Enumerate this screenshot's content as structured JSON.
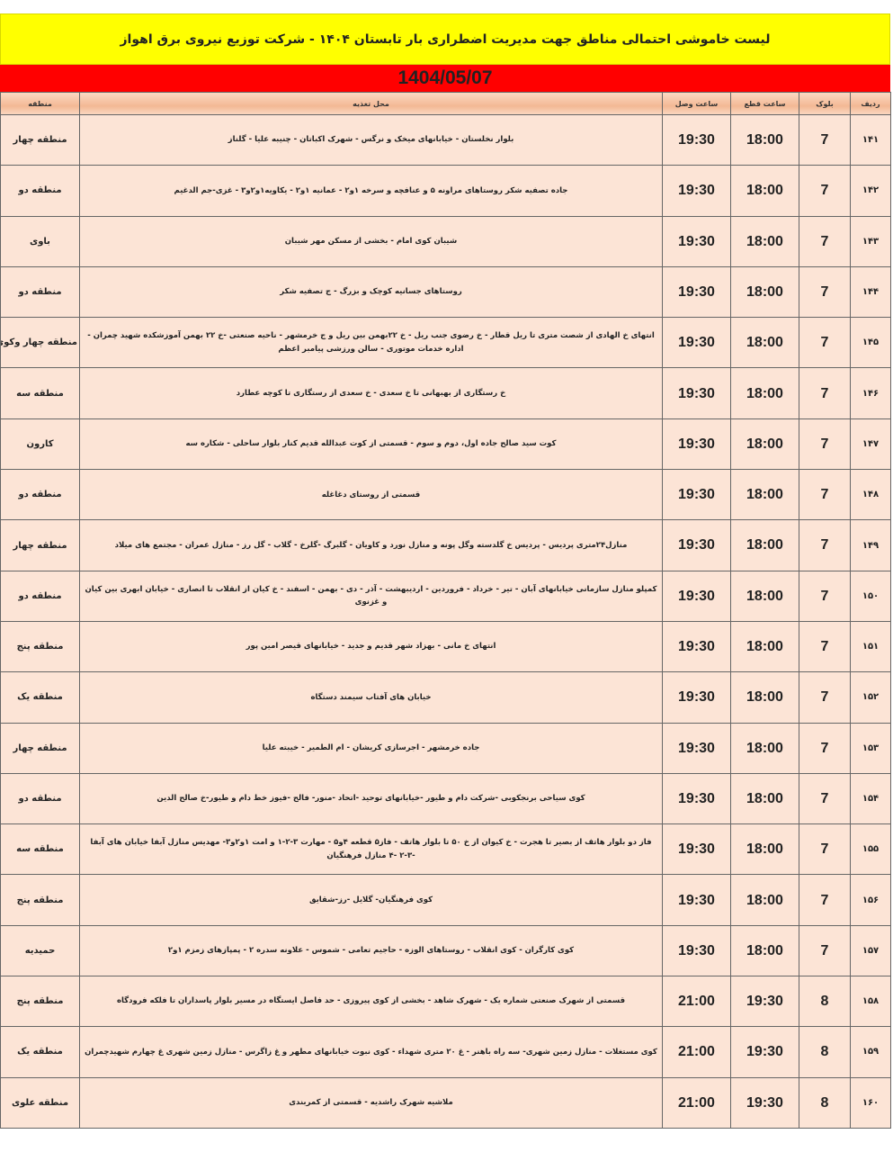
{
  "title": "لیست خاموشی احتمالی مناطق جهت مدیریت اضطراری بار تابستان ۱۴۰۴ - شرکت توزیع نیروی برق اهواز",
  "date": "1404/05/07",
  "colors": {
    "title_bg": "#ffff00",
    "date_bg": "#ff0000",
    "row_bg": "#fce4d6"
  },
  "headers": {
    "row": "ردیف",
    "block": "بلوک",
    "cut": "ساعت قطع",
    "connect": "ساعت وصل",
    "address": "محل تغذیه",
    "region": "منطقه"
  },
  "rows": [
    {
      "row": "۱۴۱",
      "block": "7",
      "cut": "18:00",
      "connect": "19:30",
      "address": "بلوار نخلستان - خیابانهای میخک و نرگس - شهرک اکباتان - چنیبه علیا - گلناز",
      "region": "منطقه چهار"
    },
    {
      "row": "۱۴۲",
      "block": "7",
      "cut": "18:00",
      "connect": "19:30",
      "address": "جاده تصفیه شکر روستاهای مراونه ۵ و عنافچه و سرخه ۱و۲ - عمانیه ۱و۲ - یکاویه۱و۲و۳ - غزی-جم الدغیم",
      "region": "منطقه دو"
    },
    {
      "row": "۱۴۳",
      "block": "7",
      "cut": "18:00",
      "connect": "19:30",
      "address": "شیبان کوی امام - بخشی از مسکن مهر شیبان",
      "region": "باوی"
    },
    {
      "row": "۱۴۴",
      "block": "7",
      "cut": "18:00",
      "connect": "19:30",
      "address": "روستاهای جسانیه کوچک و بزرگ - ج تصفیه شکر",
      "region": "منطقه دو"
    },
    {
      "row": "۱۴۵",
      "block": "7",
      "cut": "18:00",
      "connect": "19:30",
      "address": "انتهای خ الهادی از شصت متری تا ریل قطار - خ رضوی جنب ریل - خ ۲۲بهمن بین ریل و ج خرمشهر - ناحیه صنعتی -خ ۲۲ بهمن آموزشکده شهید چمران - اداره خدمات موتوری - سالن ورزشی پیامبر اعظم",
      "region": "منطقه چهار وکوی علوی"
    },
    {
      "row": "۱۴۶",
      "block": "7",
      "cut": "18:00",
      "connect": "19:30",
      "address": "خ رستگاری از بهبهانی تا خ سعدی - خ سعدی از رستگاری تا کوچه عطارد",
      "region": "منطقه سه"
    },
    {
      "row": "۱۴۷",
      "block": "7",
      "cut": "18:00",
      "connect": "19:30",
      "address": "کوت سید صالح جاده اول، دوم و سوم - قسمتی از کوت عبدالله قدیم کنار بلوار ساحلی - شکاره سه",
      "region": "کارون"
    },
    {
      "row": "۱۴۸",
      "block": "7",
      "cut": "18:00",
      "connect": "19:30",
      "address": "قسمتی از روستای دغاغله",
      "region": "منطقه دو"
    },
    {
      "row": "۱۴۹",
      "block": "7",
      "cut": "18:00",
      "connect": "19:30",
      "address": "منازل۲۴متری پردیس - پردیس خ گلدسته وگل پونه و منازل نورد و کاویان - گلبرگ -گلرخ - گلاب - گل رز - منازل عمران - مجتمع های میلاد",
      "region": "منطقه چهار"
    },
    {
      "row": "۱۵۰",
      "block": "7",
      "cut": "18:00",
      "connect": "19:30",
      "address": "کمپلو منازل سازمانی خیابانهای آبان - تیر - خرداد - فروردین - اردیبهشت - آذر - دی - بهمن - اسفند - خ کیان از انقلاب تا انصاری - خیابان ابهری بین کیان و غزنوی",
      "region": "منطقه دو"
    },
    {
      "row": "۱۵۱",
      "block": "7",
      "cut": "18:00",
      "connect": "19:30",
      "address": "انتهای خ مانی - بهزاد شهر قدیم و جدید - خیابانهای قیصر امین پور",
      "region": "منطقه پنج"
    },
    {
      "row": "۱۵۲",
      "block": "7",
      "cut": "18:00",
      "connect": "19:30",
      "address": "خیابان های آفتاب سیمند دستگاه",
      "region": "منطقه یک"
    },
    {
      "row": "۱۵۳",
      "block": "7",
      "cut": "18:00",
      "connect": "19:30",
      "address": "جاده خرمشهر - اجرسازی کریشان - ام الطمیر - خیبته علیا",
      "region": "منطقه چهار"
    },
    {
      "row": "۱۵۴",
      "block": "7",
      "cut": "18:00",
      "connect": "19:30",
      "address": "کوی سیاحی برنجکوبی -شرکت دام و طیور -خیابانهای توحید -اتحاد -منور- فالح -فیوز خط دام و طیور-خ صالح الدین",
      "region": "منطقه دو"
    },
    {
      "row": "۱۵۵",
      "block": "7",
      "cut": "18:00",
      "connect": "19:30",
      "address": "فاز دو بلوار هاتف از بصیر تا هجرت - خ کیوان از خ ۵۰ تا بلوار هاتف - فاز۵ قطعه ۴و۵ - مهارت ۳-۲-۱ و امت ۱و۲و۳- مهدیس منازل آبفا خیابان های آبفا -۳-۲ -۴ منازل فرهنگیان",
      "region": "منطقه سه"
    },
    {
      "row": "۱۵۶",
      "block": "7",
      "cut": "18:00",
      "connect": "19:30",
      "address": "کوی فرهنگیان- گلایل -رز-شقایق",
      "region": "منطقه پنج"
    },
    {
      "row": "۱۵۷",
      "block": "7",
      "cut": "18:00",
      "connect": "19:30",
      "address": "کوی کارگران - کوی انقلاب - روستاهای الوزه - حاجیم تعامی - شموس - علاونه سدره ۲ - پمپازهای زمزم ۱و۲",
      "region": "حمیدیه"
    },
    {
      "row": "۱۵۸",
      "block": "8",
      "cut": "19:30",
      "connect": "21:00",
      "address": "قسمتی از شهرک صنعتی شماره یک - شهرک شاهد - بخشی از کوی پیروزی - حد فاصل ایستگاه در مسیر بلوار پاسداران تا فلکه فرودگاه",
      "region": "منطقه پنج"
    },
    {
      "row": "۱۵۹",
      "block": "8",
      "cut": "19:30",
      "connect": "21:00",
      "address": "کوی مستغلات - منازل زمین شهری- سه راه باهنر - غ ۲۰ متری شهداء - کوی نبوت خیابانهای مطهر و غ زاگرس - منازل زمین شهری غ چهارم شهیدچمران",
      "region": "منطقه یک"
    },
    {
      "row": "۱۶۰",
      "block": "8",
      "cut": "19:30",
      "connect": "21:00",
      "address": "ملاشیه شهرک راشدیه - قسمتی از کمربندی",
      "region": "منطقه علوی"
    }
  ]
}
